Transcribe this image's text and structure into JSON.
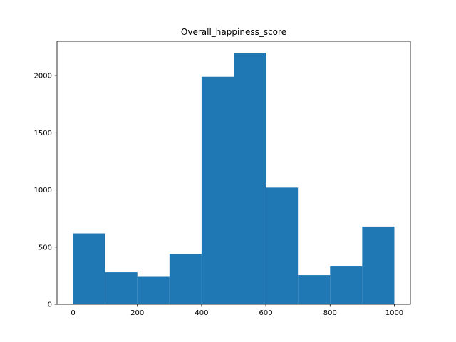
{
  "chart_data": {
    "type": "bar",
    "title": "Overall_happiness_score",
    "xlabel": "",
    "ylabel": "",
    "bin_edges": [
      0,
      100,
      200,
      300,
      400,
      500,
      600,
      700,
      800,
      900,
      1000
    ],
    "values": [
      620,
      280,
      240,
      440,
      1990,
      2200,
      1020,
      255,
      330,
      680
    ],
    "xlim": [
      -50,
      1050
    ],
    "ylim": [
      0,
      2300
    ],
    "xticks": [
      0,
      200,
      400,
      600,
      800,
      1000
    ],
    "yticks": [
      0,
      500,
      1000,
      1500,
      2000
    ],
    "grid": false,
    "bar_color": "#1f77b4"
  }
}
